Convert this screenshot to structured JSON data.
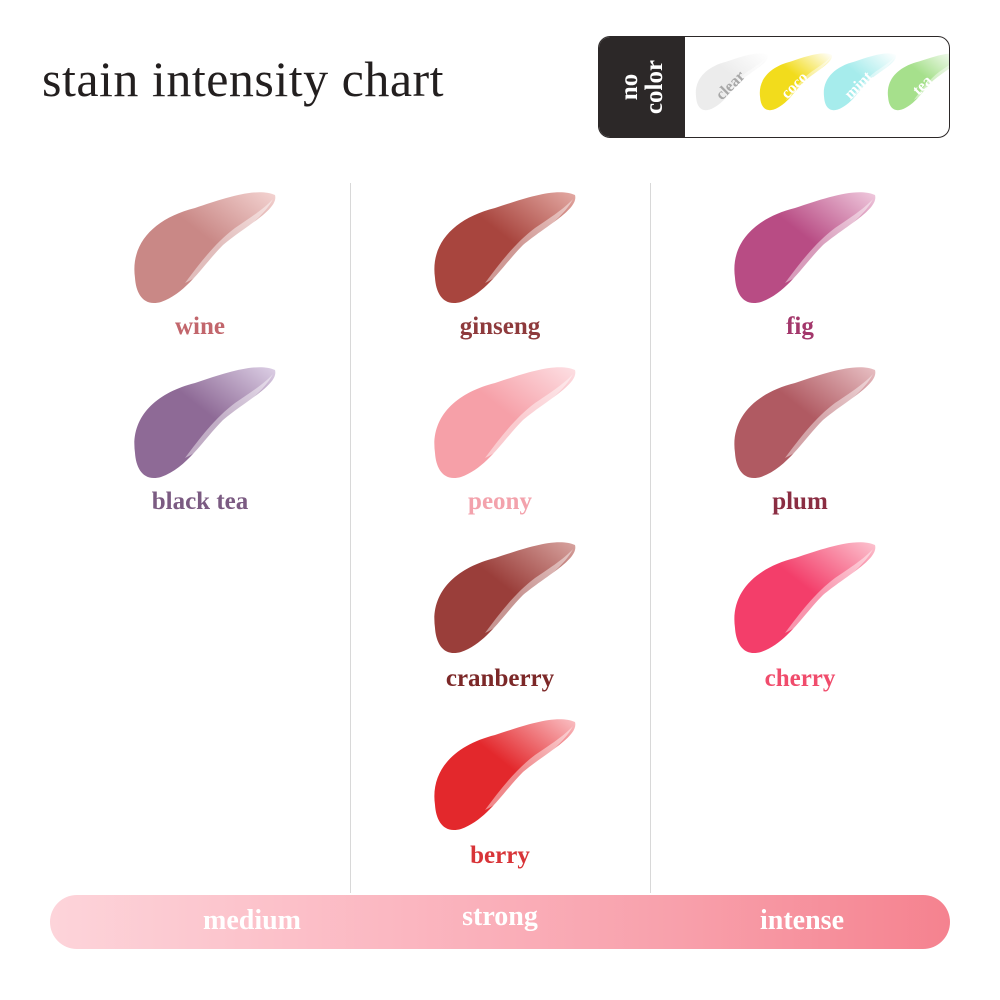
{
  "title": "stain intensity chart",
  "legend": {
    "heading": "no\ncolor",
    "items": [
      {
        "label": "clear",
        "color": "#ececec",
        "text_color": "#a8a8a8"
      },
      {
        "label": "coco",
        "color": "#f2dc1c",
        "text_color": "#ffffff"
      },
      {
        "label": "mint",
        "color": "#a6ecec",
        "text_color": "#ffffff"
      },
      {
        "label": "tea",
        "color": "#a6e08c",
        "text_color": "#ffffff"
      }
    ]
  },
  "columns": [
    {
      "items": [
        {
          "label": "wine",
          "color": "#c98886",
          "light": "#f4d4d2",
          "text_color": "#c2666c"
        },
        {
          "label": "black tea",
          "color": "#8e6a96",
          "light": "#ddd0e6",
          "text_color": "#7b5b82"
        }
      ]
    },
    {
      "items": [
        {
          "label": "ginseng",
          "color": "#a8453e",
          "light": "#e4aaa4",
          "text_color": "#8e3a3c"
        },
        {
          "label": "peony",
          "color": "#f6a0a8",
          "light": "#fde0e4",
          "text_color": "#f3a2ac"
        },
        {
          "label": "cranberry",
          "color": "#9a3e3a",
          "light": "#d8a4a0",
          "text_color": "#7c2828"
        },
        {
          "label": "berry",
          "color": "#e3282c",
          "light": "#fac0c4",
          "text_color": "#d83438"
        }
      ]
    },
    {
      "items": [
        {
          "label": "fig",
          "color": "#b84c84",
          "light": "#f0cade",
          "text_color": "#a3376b"
        },
        {
          "label": "plum",
          "color": "#b05a62",
          "light": "#e8c0c4",
          "text_color": "#8a2d42"
        },
        {
          "label": "cherry",
          "color": "#f33e6a",
          "light": "#fcc4d0",
          "text_color": "#f04c6c"
        }
      ]
    }
  ],
  "scale": [
    "medium",
    "strong",
    "intense"
  ]
}
